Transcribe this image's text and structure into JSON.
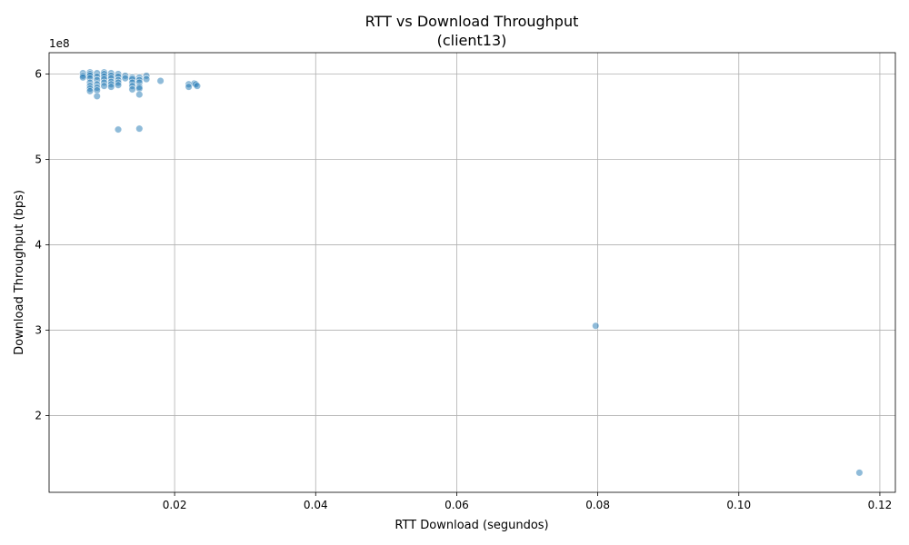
{
  "chart_data": {
    "type": "scatter",
    "title": "RTT vs Download Throughput",
    "subtitle": "(client13)",
    "xlabel": "RTT Download (segundos)",
    "ylabel": "Download Throughput (bps)",
    "y_offset_label": "1e8",
    "xlim": [
      0.0022,
      0.1222
    ],
    "ylim": [
      110000000.0,
      625000000.0
    ],
    "x_ticks": [
      0.02,
      0.04,
      0.06,
      0.08,
      0.1,
      0.12
    ],
    "x_tick_labels": [
      "0.02",
      "0.04",
      "0.06",
      "0.08",
      "0.10",
      "0.12"
    ],
    "y_ticks": [
      200000000.0,
      300000000.0,
      400000000.0,
      500000000.0,
      600000000.0
    ],
    "y_tick_labels": [
      "2",
      "3",
      "4",
      "5",
      "6"
    ],
    "grid": true,
    "point_color": "#1f77b4",
    "points": [
      [
        0.007,
        601000000.0
      ],
      [
        0.007,
        598000000.0
      ],
      [
        0.007,
        596000000.0
      ],
      [
        0.008,
        602000000.0
      ],
      [
        0.008,
        600000000.0
      ],
      [
        0.008,
        598000000.0
      ],
      [
        0.008,
        595000000.0
      ],
      [
        0.008,
        590000000.0
      ],
      [
        0.008,
        586000000.0
      ],
      [
        0.008,
        583000000.0
      ],
      [
        0.008,
        580000000.0
      ],
      [
        0.009,
        601000000.0
      ],
      [
        0.009,
        597000000.0
      ],
      [
        0.009,
        593000000.0
      ],
      [
        0.009,
        588000000.0
      ],
      [
        0.009,
        584000000.0
      ],
      [
        0.009,
        581000000.0
      ],
      [
        0.009,
        574000000.0
      ],
      [
        0.01,
        602000000.0
      ],
      [
        0.01,
        600000000.0
      ],
      [
        0.01,
        597000000.0
      ],
      [
        0.01,
        594000000.0
      ],
      [
        0.01,
        590000000.0
      ],
      [
        0.01,
        586000000.0
      ],
      [
        0.011,
        601000000.0
      ],
      [
        0.011,
        598000000.0
      ],
      [
        0.011,
        595000000.0
      ],
      [
        0.011,
        591000000.0
      ],
      [
        0.011,
        588000000.0
      ],
      [
        0.011,
        585000000.0
      ],
      [
        0.012,
        600000000.0
      ],
      [
        0.012,
        597000000.0
      ],
      [
        0.012,
        593000000.0
      ],
      [
        0.012,
        590000000.0
      ],
      [
        0.012,
        587000000.0
      ],
      [
        0.012,
        535000000.0
      ],
      [
        0.013,
        598000000.0
      ],
      [
        0.013,
        595000000.0
      ],
      [
        0.014,
        596000000.0
      ],
      [
        0.014,
        594000000.0
      ],
      [
        0.014,
        590000000.0
      ],
      [
        0.014,
        586000000.0
      ],
      [
        0.014,
        582000000.0
      ],
      [
        0.015,
        596000000.0
      ],
      [
        0.015,
        593000000.0
      ],
      [
        0.015,
        590000000.0
      ],
      [
        0.015,
        585000000.0
      ],
      [
        0.015,
        583000000.0
      ],
      [
        0.015,
        576000000.0
      ],
      [
        0.015,
        536000000.0
      ],
      [
        0.016,
        598000000.0
      ],
      [
        0.016,
        594000000.0
      ],
      [
        0.018,
        592000000.0
      ],
      [
        0.022,
        588000000.0
      ],
      [
        0.022,
        585000000.0
      ],
      [
        0.0228,
        589000000.0
      ],
      [
        0.023,
        588000000.0
      ],
      [
        0.0232,
        586000000.0
      ],
      [
        0.0797,
        305000000.0
      ],
      [
        0.1171,
        133000000.0
      ]
    ]
  }
}
